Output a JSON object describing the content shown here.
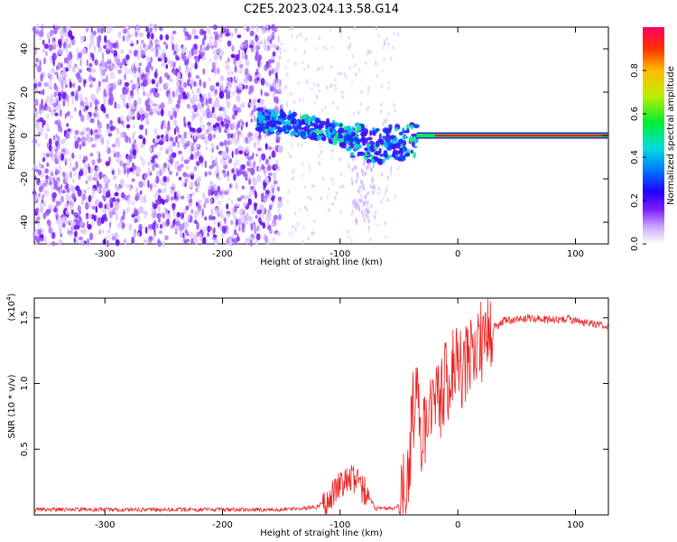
{
  "title": "C2E5.2023.024.13.58.G14",
  "chart_data": [
    {
      "type": "heatmap",
      "xlabel": "Height of straight line (km)",
      "ylabel": "Frequency (Hz)",
      "xlim": [
        -360,
        128
      ],
      "ylim": [
        -50,
        50
      ],
      "xticks": [
        -300,
        -200,
        -100,
        0,
        100
      ],
      "yticks": [
        -40,
        -20,
        0,
        20,
        40
      ],
      "colorbar": {
        "label": "Normalized spectral amplitude",
        "range": [
          0,
          1
        ],
        "ticks": [
          "0.0",
          "0.2",
          "0.4",
          "0.6",
          "0.8"
        ]
      },
      "features": {
        "noise_region_x": [
          -360,
          -150
        ],
        "signal_track": [
          {
            "x": -170,
            "y": 7
          },
          {
            "x": -150,
            "y": 6
          },
          {
            "x": -130,
            "y": 4
          },
          {
            "x": -110,
            "y": 2
          },
          {
            "x": -90,
            "y": -2
          },
          {
            "x": -70,
            "y": -5
          },
          {
            "x": -55,
            "y": -4
          },
          {
            "x": -40,
            "y": -2
          },
          {
            "x": -20,
            "y": 0
          },
          {
            "x": 0,
            "y": 1
          },
          {
            "x": 128,
            "y": 0
          }
        ]
      },
      "grid": false
    },
    {
      "type": "line",
      "xlabel": "Height of straight line (km)",
      "ylabel": "SNR (10 * v/v)",
      "yscale_label": "(x10",
      "yscale_exp": "4",
      "xlim": [
        -360,
        128
      ],
      "ylim": [
        0,
        1.65
      ],
      "xticks": [
        "-300",
        "-200",
        "-100",
        "0",
        "100"
      ],
      "yticks": [
        "0.5",
        "1.0",
        "1.5"
      ],
      "series": [
        {
          "color": "#ee2222",
          "points": [
            [
              -360,
              0.04
            ],
            [
              -300,
              0.04
            ],
            [
              -250,
              0.04
            ],
            [
              -200,
              0.04
            ],
            [
              -150,
              0.04
            ],
            [
              -120,
              0.06
            ],
            [
              -110,
              0.12
            ],
            [
              -100,
              0.22
            ],
            [
              -90,
              0.27
            ],
            [
              -80,
              0.2
            ],
            [
              -70,
              0.05
            ],
            [
              -55,
              0.05
            ],
            [
              -48,
              0.1
            ],
            [
              -42,
              0.35
            ],
            [
              -38,
              0.8
            ],
            [
              -35,
              1.1
            ],
            [
              -30,
              0.5
            ],
            [
              -25,
              0.9
            ],
            [
              -20,
              0.95
            ],
            [
              -15,
              0.9
            ],
            [
              -10,
              1.0
            ],
            [
              -5,
              1.05
            ],
            [
              0,
              1.1
            ],
            [
              5,
              1.15
            ],
            [
              10,
              1.2
            ],
            [
              15,
              1.25
            ],
            [
              20,
              1.32
            ],
            [
              25,
              1.38
            ],
            [
              30,
              1.42
            ],
            [
              40,
              1.48
            ],
            [
              60,
              1.5
            ],
            [
              80,
              1.48
            ],
            [
              95,
              1.49
            ],
            [
              110,
              1.46
            ],
            [
              128,
              1.44
            ]
          ]
        }
      ],
      "grid": false
    }
  ],
  "ui": {
    "accent": "#ee2222"
  }
}
